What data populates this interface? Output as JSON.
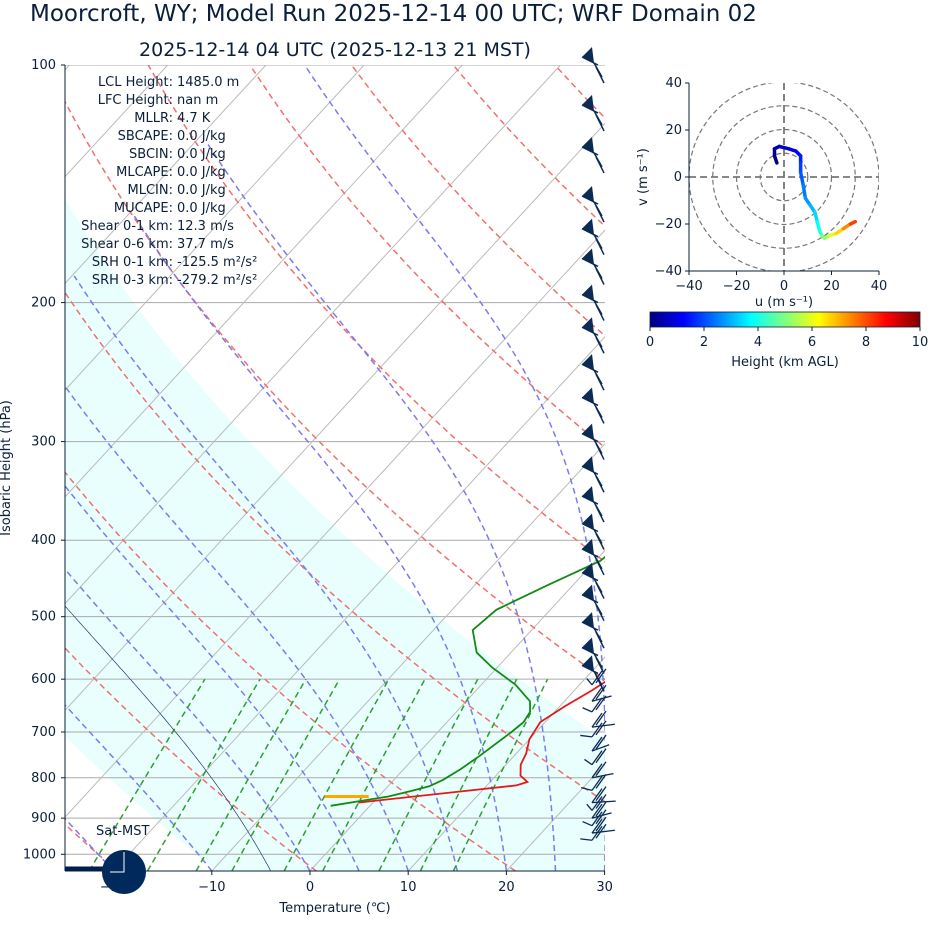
{
  "chart_data": [
    {
      "type": "skew-t",
      "title": "Moorcroft, WY; Model Run 2025-12-14 00 UTC; WRF Domain 02",
      "subtitle": "2025-12-14 04 UTC  (2025-12-13 21 MST)",
      "xlabel": "Temperature (℃)",
      "ylabel": "Isobaric Height (hPa)",
      "xlim": [
        -25,
        30
      ],
      "ylim": [
        1050,
        100
      ],
      "x_ticks": [
        -20,
        -10,
        0,
        10,
        20,
        30
      ],
      "x_tick_labels": [
        "−20",
        "−10",
        "0",
        "10",
        "20",
        "30"
      ],
      "pressure_levels": [
        100,
        200,
        300,
        400,
        500,
        600,
        700,
        800,
        900,
        1000
      ],
      "grid": true,
      "indices": [
        {
          "label": "LCL Height:",
          "value": "1485.0 m"
        },
        {
          "label": "LFC Height:",
          "value": "nan m"
        },
        {
          "label": "MLLR:",
          "value": "4.7 K"
        },
        {
          "label": "SBCAPE:",
          "value": "0.0 J/kg"
        },
        {
          "label": "SBCIN:",
          "value": "0.0 J/kg"
        },
        {
          "label": "MLCAPE:",
          "value": "0.0 J/kg"
        },
        {
          "label": "MLCIN:",
          "value": "0.0 J/kg"
        },
        {
          "label": "MUCAPE:",
          "value": "0.0 J/kg"
        },
        {
          "label": "Shear 0-1 km:",
          "value": "12.3 m/s"
        },
        {
          "label": "Shear 0-6 km:",
          "value": "37.7 m/s"
        },
        {
          "label": "SRH 0-1 km:",
          "value": "-125.5 m²/s²"
        },
        {
          "label": "SRH 0-3 km:",
          "value": "-279.2 m²/s²"
        }
      ],
      "series": [
        {
          "name": "",
          "color": "#e31a1c",
          "points": [
            [
              -1.5,
              860
            ],
            [
              7,
              835
            ],
            [
              13,
              818
            ],
            [
              13.8,
              810
            ],
            [
              12.5,
              795
            ],
            [
              11.5,
              770
            ],
            [
              11,
              745
            ],
            [
              10,
              715
            ],
            [
              9.5,
              680
            ],
            [
              10.5,
              650
            ],
            [
              11.8,
              620
            ],
            [
              12.5,
              600
            ],
            [
              11.8,
              560
            ],
            [
              10.5,
              500
            ],
            [
              9,
              450
            ],
            [
              6.5,
              400
            ],
            [
              3.5,
              350
            ],
            [
              0.5,
              300
            ],
            [
              -2.5,
              255
            ],
            [
              -4.5,
              220
            ],
            [
              -4.5,
              195
            ],
            [
              -2,
              165
            ],
            [
              0.5,
              150
            ],
            [
              6,
              125
            ],
            [
              10,
              110
            ],
            [
              12.5,
              100
            ]
          ]
        },
        {
          "name": "",
          "color": "#138a13",
          "points": [
            [
              -4,
              868
            ],
            [
              1,
              845
            ],
            [
              3,
              830
            ],
            [
              4.2,
              820
            ],
            [
              5,
              805
            ],
            [
              5.8,
              780
            ],
            [
              6.5,
              750
            ],
            [
              7.5,
              700
            ],
            [
              7.8,
              680
            ],
            [
              7.5,
              660
            ],
            [
              6.5,
              640
            ],
            [
              3.5,
              610
            ],
            [
              -0.5,
              580
            ],
            [
              -3.5,
              555
            ],
            [
              -6,
              520
            ],
            [
              -5.5,
              490
            ],
            [
              -2.5,
              455
            ],
            [
              0.5,
              425
            ],
            [
              1.2,
              400
            ],
            [
              0.5,
              385
            ],
            [
              -2.5,
              360
            ],
            [
              -5.5,
              325
            ],
            [
              -8,
              295
            ],
            [
              -9.5,
              265
            ],
            [
              -10.8,
              240
            ],
            [
              -11.5,
              220
            ],
            [
              -11,
              190
            ],
            [
              -10,
              170
            ],
            [
              -8.5,
              155
            ],
            [
              -7.2,
              140
            ],
            [
              -8,
              130
            ],
            [
              -4,
              115
            ],
            [
              -1,
              105
            ],
            [
              1,
              100
            ]
          ]
        }
      ],
      "parcel_segment": {
        "color": "#ffa500",
        "points": [
          [
            -5.5,
            845
          ],
          [
            -1,
            845
          ]
        ]
      },
      "surface_label": "Sat-MST",
      "wind_barb_levels": [
        100,
        115,
        130,
        150,
        165,
        180,
        200,
        220,
        245,
        270,
        300,
        330,
        360,
        390,
        420,
        450,
        480,
        520,
        560,
        590,
        610,
        640,
        660,
        690,
        710,
        740,
        770,
        800,
        830,
        860,
        880,
        900,
        920,
        940,
        960
      ],
      "barb_color": "#0b2b55"
    },
    {
      "type": "hodograph",
      "xlabel": "u (m s⁻¹)",
      "ylabel": "v (m s⁻¹)",
      "xlim": [
        -40,
        40
      ],
      "ylim": [
        -40,
        40
      ],
      "x_ticks": [
        -40,
        -20,
        0,
        20,
        40
      ],
      "x_tick_labels": [
        "−40",
        "−20",
        "0",
        "20",
        "40"
      ],
      "y_ticks": [
        -40,
        -20,
        0,
        20,
        40
      ],
      "y_tick_labels": [
        "−40",
        "−20",
        "0",
        "20",
        "40"
      ],
      "ring_radii": [
        10,
        20,
        30,
        40
      ],
      "path": [
        {
          "u": -3,
          "v": 6,
          "h": 0
        },
        {
          "u": -4,
          "v": 9,
          "h": 0
        },
        {
          "u": -4,
          "v": 12,
          "h": 0.2
        },
        {
          "u": -2,
          "v": 13,
          "h": 0.5
        },
        {
          "u": 2,
          "v": 12,
          "h": 0.8
        },
        {
          "u": 5,
          "v": 11,
          "h": 1.1
        },
        {
          "u": 7,
          "v": 9,
          "h": 1.4
        },
        {
          "u": 7,
          "v": 6,
          "h": 1.7
        },
        {
          "u": 7,
          "v": 2,
          "h": 2.0
        },
        {
          "u": 8,
          "v": -3,
          "h": 2.3
        },
        {
          "u": 9,
          "v": -9,
          "h": 2.6
        },
        {
          "u": 11,
          "v": -12,
          "h": 2.9
        },
        {
          "u": 13,
          "v": -15,
          "h": 3.2
        },
        {
          "u": 14,
          "v": -19,
          "h": 3.6
        },
        {
          "u": 15,
          "v": -23,
          "h": 4.0
        },
        {
          "u": 16,
          "v": -25,
          "h": 4.5
        },
        {
          "u": 17,
          "v": -26,
          "h": 5.0
        },
        {
          "u": 19,
          "v": -25,
          "h": 5.6
        },
        {
          "u": 22,
          "v": -24,
          "h": 6.3
        },
        {
          "u": 25,
          "v": -22,
          "h": 7.0
        },
        {
          "u": 28,
          "v": -20,
          "h": 7.8
        },
        {
          "u": 30,
          "v": -19,
          "h": 8.5
        }
      ]
    },
    {
      "type": "colorbar",
      "label": "Height (km AGL)",
      "range": [
        0,
        10
      ],
      "ticks": [
        0,
        2,
        4,
        6,
        8,
        10
      ],
      "colormap": [
        "#00007f",
        "#0000ff",
        "#007fff",
        "#00ffff",
        "#7fff7f",
        "#ffff00",
        "#ff7f00",
        "#ff0000",
        "#7f0000"
      ]
    }
  ]
}
